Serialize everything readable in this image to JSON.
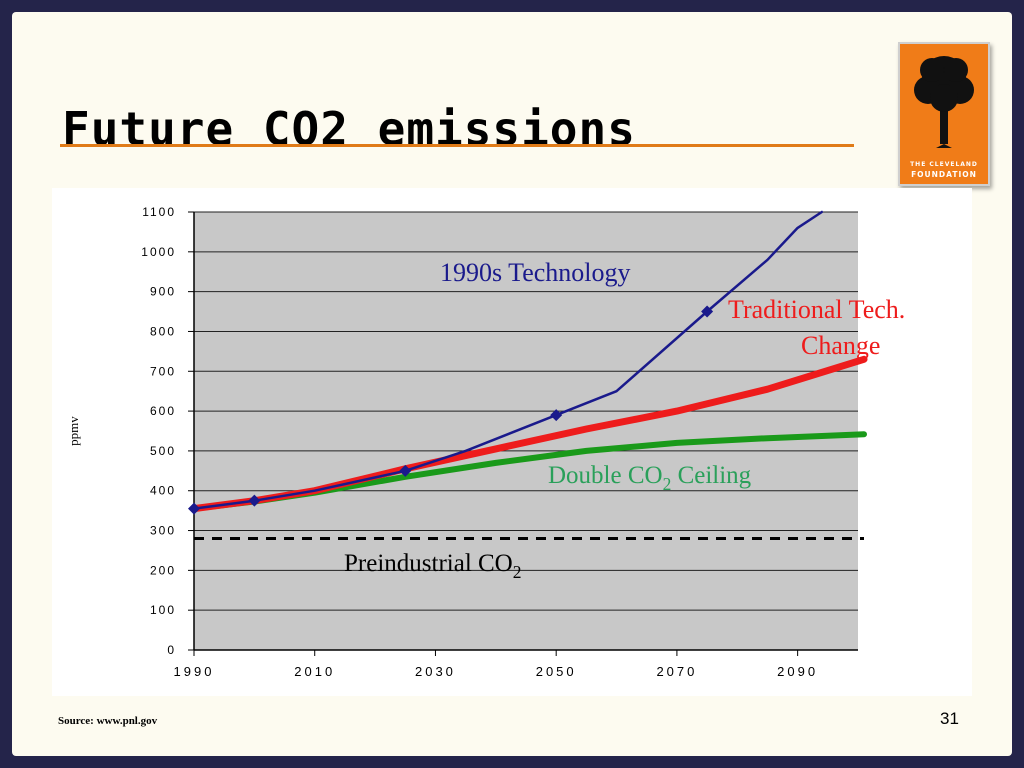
{
  "slide": {
    "title": "Future CO2 emissions",
    "source": "Source: www.pnl.gov",
    "page_number": "31",
    "logo": {
      "icon": "tree-icon",
      "line1": "THE CLEVELAND",
      "line2": "FOUNDATION",
      "color": "#f07c18"
    }
  },
  "chart_data": {
    "type": "line",
    "ylabel": "ppmv",
    "xlabel": "",
    "xlim": [
      1990,
      2100
    ],
    "ylim": [
      0,
      1100
    ],
    "x_ticks": [
      1990,
      2010,
      2030,
      2050,
      2070,
      2090
    ],
    "y_ticks": [
      0,
      100,
      200,
      300,
      400,
      500,
      600,
      700,
      800,
      900,
      1000,
      1100
    ],
    "grid": true,
    "plot_background": "#c8c8c8",
    "series": [
      {
        "name": "1990s Technology",
        "color": "#1a1a8c",
        "x": [
          1990,
          2000,
          2010,
          2025,
          2035,
          2050,
          2060,
          2075,
          2085,
          2090,
          2094
        ],
        "y": [
          355,
          375,
          400,
          450,
          500,
          590,
          650,
          850,
          980,
          1060,
          1100
        ],
        "markers_at": [
          1990,
          2000,
          2025,
          2050,
          2075
        ]
      },
      {
        "name": "Traditional Tech. Change",
        "color": "#ee1c1c",
        "x": [
          1990,
          2000,
          2010,
          2025,
          2040,
          2055,
          2070,
          2085,
          2101
        ],
        "y": [
          355,
          375,
          400,
          455,
          505,
          555,
          600,
          655,
          730
        ]
      },
      {
        "name": "Double CO2 Ceiling",
        "color": "#1a9a1a",
        "x": [
          1990,
          2000,
          2010,
          2025,
          2040,
          2055,
          2070,
          2085,
          2101
        ],
        "y": [
          355,
          373,
          395,
          435,
          470,
          500,
          520,
          532,
          542
        ]
      },
      {
        "name": "Preindustrial CO2",
        "color": "#000000",
        "dashed": true,
        "x": [
          1990,
          2101
        ],
        "y": [
          280,
          280
        ]
      }
    ],
    "annotations": [
      {
        "text": "1990s Technology",
        "color": "#1a1a8c"
      },
      {
        "text": "Traditional Tech.",
        "color": "#ee1c1c"
      },
      {
        "text": "Change",
        "color": "#ee1c1c"
      },
      {
        "text": "Double CO",
        "sub": "2",
        "tail": " Ceiling",
        "color": "#2aa05a"
      },
      {
        "text": "Preindustrial CO",
        "sub": "2",
        "color": "#000000"
      }
    ]
  }
}
